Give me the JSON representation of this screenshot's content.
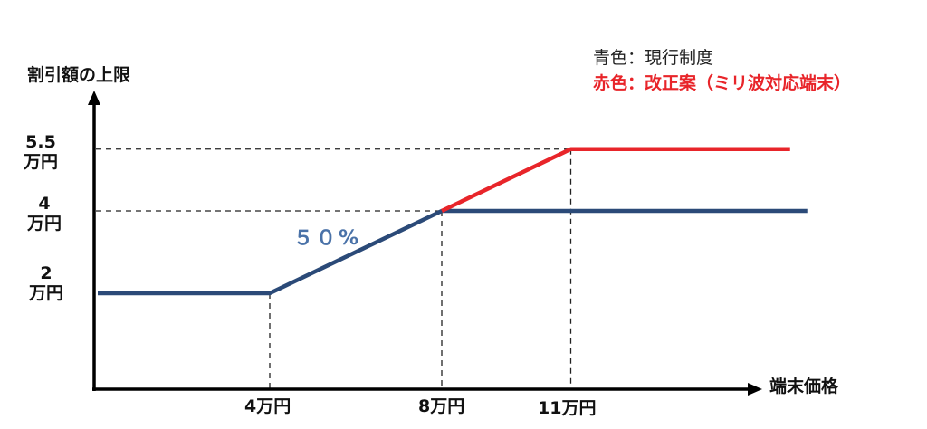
{
  "chart_data": {
    "type": "line",
    "ylabel": "割引額の上限",
    "xlabel": "端末価格",
    "y_ticks": [
      {
        "value": 5.5,
        "line1": "5.5",
        "line2": "万円"
      },
      {
        "value": 4,
        "line1": "4",
        "line2": "万円"
      },
      {
        "value": 2,
        "line1": "2",
        "line2": "万円"
      }
    ],
    "x_ticks": [
      {
        "value": 4,
        "label": "4万円"
      },
      {
        "value": 8,
        "label": "8万円"
      },
      {
        "value": 11,
        "label": "11万円"
      }
    ],
    "annotation": "５０%",
    "grid": "dashed guide lines at key points",
    "legend": {
      "placement": "top-right",
      "items": [
        {
          "label": "青色：現行制度",
          "color": "#222222"
        },
        {
          "label": "赤色：改正案（ミリ波対応端末）",
          "color": "#e8252a"
        }
      ]
    },
    "series": [
      {
        "color": "#2b4a78",
        "points": [
          [
            0,
            2
          ],
          [
            4,
            2
          ],
          [
            8,
            4
          ],
          [
            16.5,
            4
          ]
        ]
      },
      {
        "color": "#e8252a",
        "points": [
          [
            8,
            4
          ],
          [
            11,
            5.5
          ],
          [
            16.1,
            5.5
          ]
        ]
      }
    ]
  }
}
